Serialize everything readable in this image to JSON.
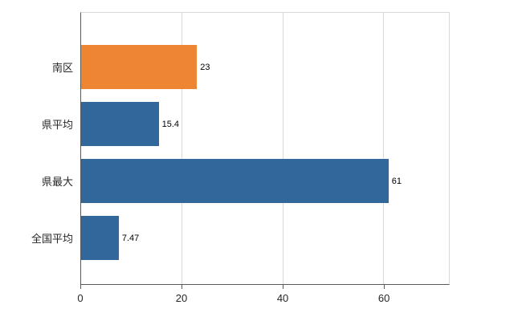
{
  "chart_data": {
    "type": "bar",
    "orientation": "horizontal",
    "title": "",
    "xlabel": "",
    "ylabel": "",
    "categories": [
      "南区",
      "県平均",
      "県最大",
      "全国平均"
    ],
    "values": [
      23,
      15.4,
      61,
      7.47
    ],
    "value_labels": [
      "23",
      "15.4",
      "61",
      "7.47"
    ],
    "bar_colors": [
      "#ED8532",
      "#31679B",
      "#31679B",
      "#31679B"
    ],
    "xticks": [
      0,
      20,
      40,
      60
    ],
    "xtick_labels": [
      "0",
      "20",
      "40",
      "60"
    ],
    "xlim": [
      0,
      73
    ],
    "grid": true,
    "gridline_color": "#d9d9d9",
    "axis_color": "#595959",
    "background_color": "#ffffff"
  }
}
